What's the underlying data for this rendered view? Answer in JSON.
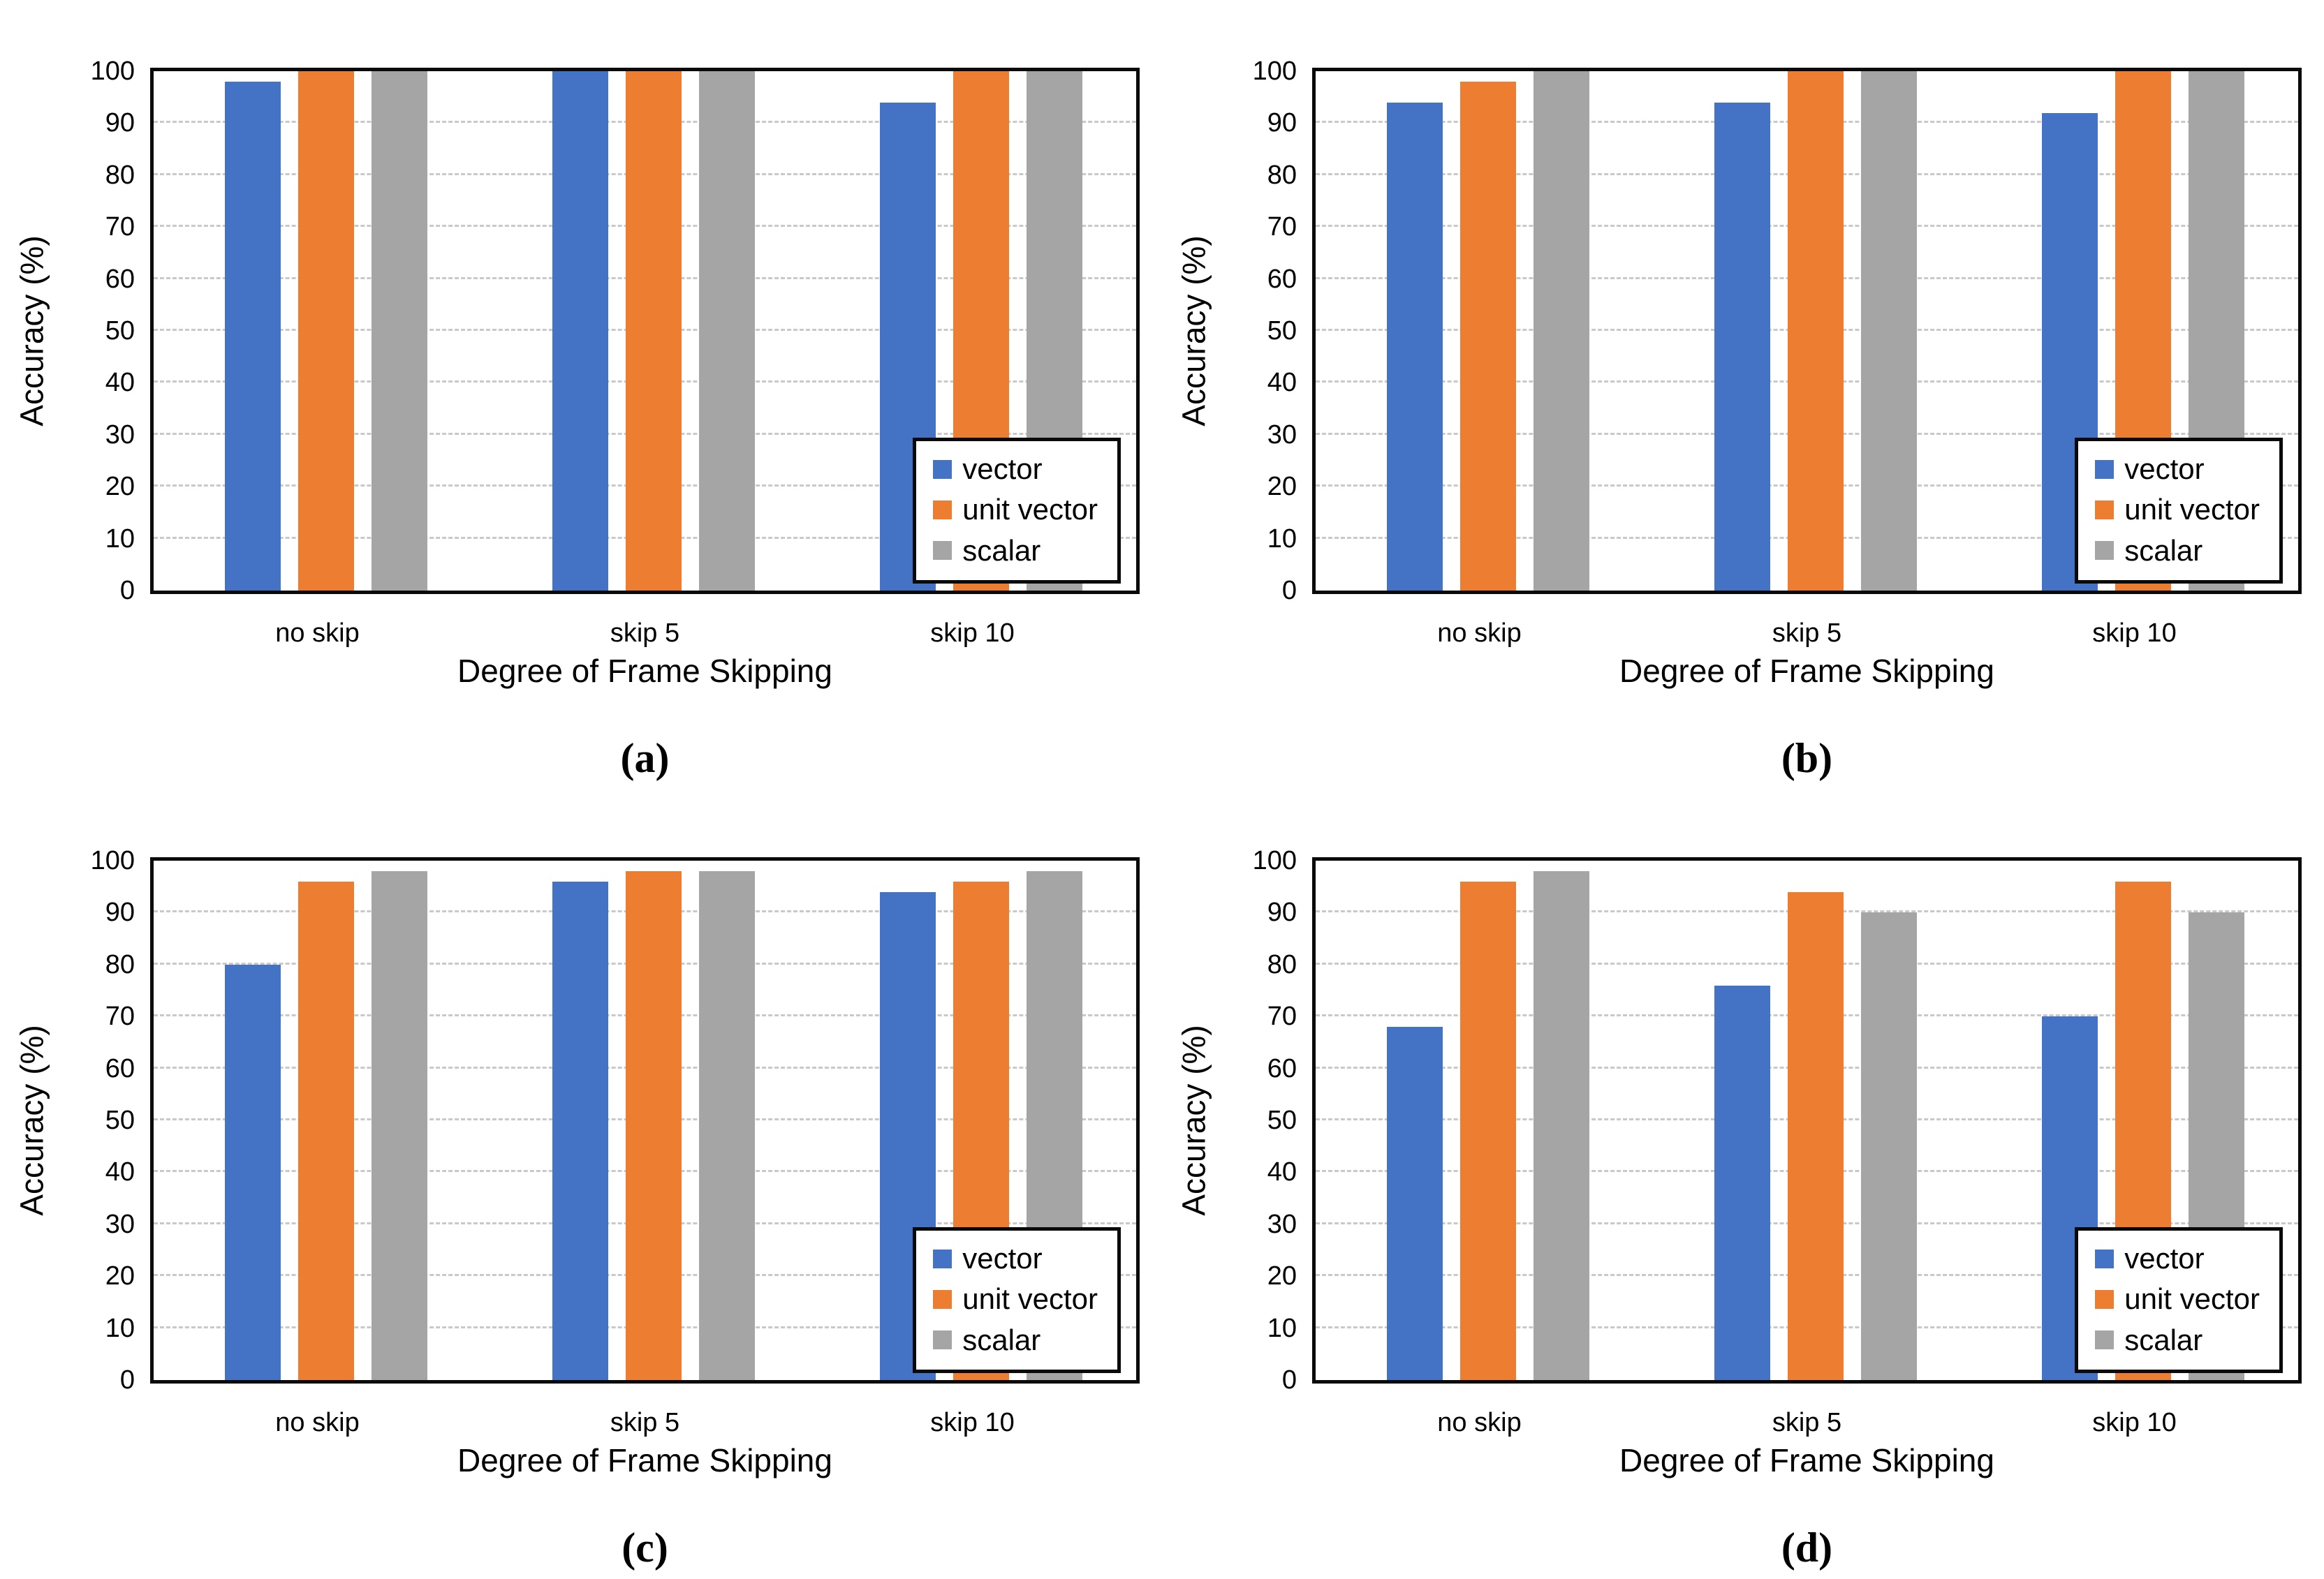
{
  "figure": {
    "background": "#ffffff",
    "axis_color": "#0a0a0a",
    "gridline_color": "#c9c9c9",
    "y_ticks": [
      0,
      10,
      20,
      30,
      40,
      50,
      60,
      70,
      80,
      90,
      100
    ],
    "series_colors": {
      "vector": "#4472C4",
      "unit vector": "#ED7D31",
      "scalar": "#A5A5A5"
    }
  },
  "chart_data": [
    {
      "id": "a",
      "caption": "(a)",
      "type": "bar",
      "xlabel": "Degree of Frame Skipping",
      "ylabel": "Accuracy (%)",
      "ylim": [
        0,
        100
      ],
      "grid": "horizontal-dashed",
      "legend_position": "inside-bottom-right",
      "categories": [
        "no skip",
        "skip 5",
        "skip 10"
      ],
      "series": [
        {
          "name": "vector",
          "values": [
            98,
            100,
            94
          ]
        },
        {
          "name": "unit vector",
          "values": [
            100,
            100,
            100
          ]
        },
        {
          "name": "scalar",
          "values": [
            100,
            100,
            100
          ]
        }
      ]
    },
    {
      "id": "b",
      "caption": "(b)",
      "type": "bar",
      "xlabel": "Degree of Frame Skipping",
      "ylabel": "Accuracy (%)",
      "ylim": [
        0,
        100
      ],
      "grid": "horizontal-dashed",
      "legend_position": "inside-bottom-right",
      "categories": [
        "no skip",
        "skip 5",
        "skip 10"
      ],
      "series": [
        {
          "name": "vector",
          "values": [
            94,
            94,
            92
          ]
        },
        {
          "name": "unit vector",
          "values": [
            98,
            100,
            100
          ]
        },
        {
          "name": "scalar",
          "values": [
            100,
            100,
            100
          ]
        }
      ]
    },
    {
      "id": "c",
      "caption": "(c)",
      "type": "bar",
      "xlabel": "Degree of Frame Skipping",
      "ylabel": "Accuracy (%)",
      "ylim": [
        0,
        100
      ],
      "grid": "horizontal-dashed",
      "legend_position": "inside-bottom-right",
      "categories": [
        "no skip",
        "skip 5",
        "skip 10"
      ],
      "series": [
        {
          "name": "vector",
          "values": [
            80,
            96,
            94
          ]
        },
        {
          "name": "unit vector",
          "values": [
            96,
            98,
            96
          ]
        },
        {
          "name": "scalar",
          "values": [
            98,
            98,
            98
          ]
        }
      ]
    },
    {
      "id": "d",
      "caption": "(d)",
      "type": "bar",
      "xlabel": "Degree of Frame Skipping",
      "ylabel": "Accuracy (%)",
      "ylim": [
        0,
        100
      ],
      "grid": "horizontal-dashed",
      "legend_position": "inside-bottom-right",
      "categories": [
        "no skip",
        "skip 5",
        "skip 10"
      ],
      "series": [
        {
          "name": "vector",
          "values": [
            68,
            76,
            70
          ]
        },
        {
          "name": "unit vector",
          "values": [
            96,
            94,
            96
          ]
        },
        {
          "name": "scalar",
          "values": [
            98,
            90,
            90
          ]
        }
      ]
    }
  ]
}
